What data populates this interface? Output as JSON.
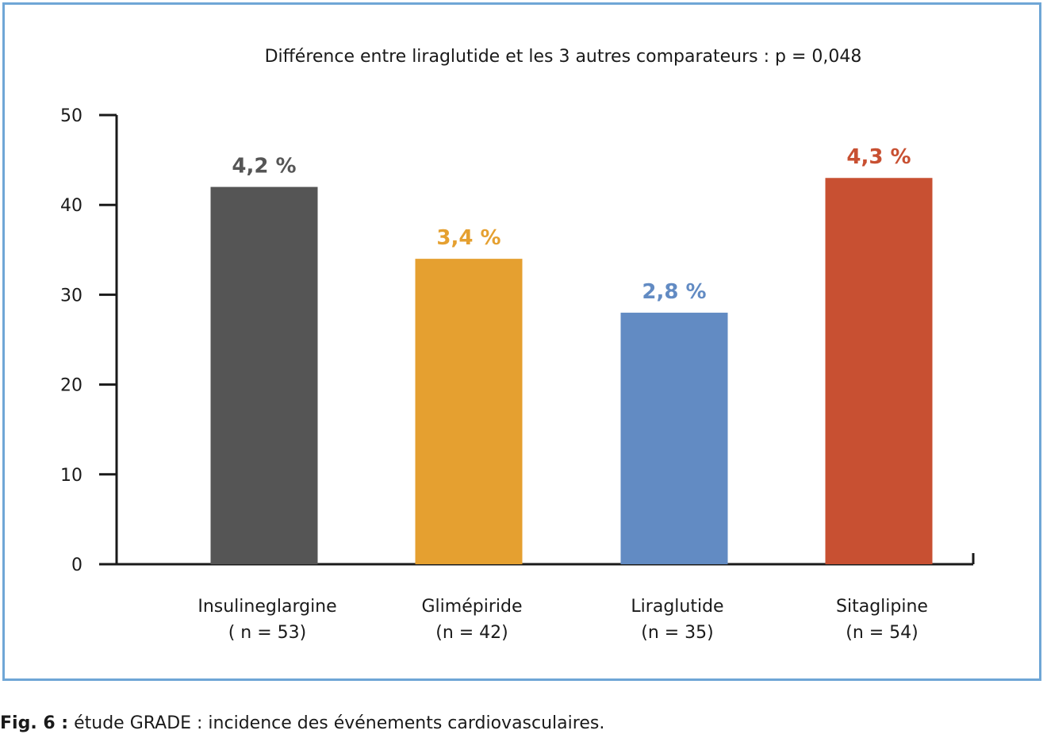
{
  "chart_data": {
    "type": "bar",
    "subtitle": "Différence entre liraglutide et les 3 autres comparateurs : p = 0,048",
    "ylim": [
      0,
      50
    ],
    "yticks": [
      0,
      10,
      20,
      30,
      40,
      50
    ],
    "categories": [
      {
        "name": "Insulineglargine",
        "n": "( n = 53)",
        "value": 42,
        "label": "4,2 %",
        "color": "#555555"
      },
      {
        "name": "Glimépiride",
        "n": "(n = 42)",
        "value": 34,
        "label": "3,4 %",
        "color": "#e5a030"
      },
      {
        "name": "Liraglutide",
        "n": "(n = 35)",
        "value": 28,
        "label": "2,8 %",
        "color": "#628bc3"
      },
      {
        "name": "Sitaglipine",
        "n": "(n = 54)",
        "value": 43,
        "label": "4,3 %",
        "color": "#c85032"
      }
    ],
    "grid": false,
    "legend": "none"
  },
  "caption": {
    "fig_label": "Fig. 6 :",
    "text": " étude GRADE : incidence des événements cardiovasculaires."
  },
  "colors": {
    "frame_border": "#6fa6d6",
    "axis": "#1a1a1a"
  }
}
